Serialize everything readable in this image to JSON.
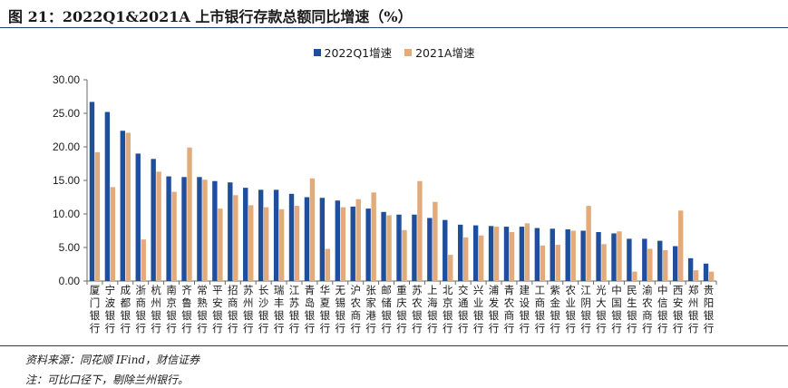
{
  "header": {
    "title": "图 21：2022Q1&2021A 上市银行存款总额同比增速（%）"
  },
  "footer": {
    "source": "资料来源：同花顺 IFind，财信证券",
    "note": "注：可比口径下，剔除兰州银行。"
  },
  "colors": {
    "series_2022Q1": "#1f4e9c",
    "series_2021A": "#e2ab7c",
    "axis": "#6a6a6a",
    "rule": "#1f3f7a"
  },
  "chart_data": {
    "type": "bar",
    "title": "",
    "xlabel": "",
    "ylabel": "",
    "ylim": [
      0,
      30
    ],
    "yticks": [
      "0.00",
      "5.00",
      "10.00",
      "15.00",
      "20.00",
      "25.00",
      "30.00"
    ],
    "grid": false,
    "legend_position": "top-center",
    "categories": [
      "厦门银行",
      "宁波银行",
      "成都银行",
      "浙商银行",
      "杭州银行",
      "南京银行",
      "齐鲁银行",
      "常熟银行",
      "平安银行",
      "招商银行",
      "苏州银行",
      "长沙银行",
      "瑞丰银行",
      "江苏银行",
      "青岛银行",
      "华夏银行",
      "无锡银行",
      "沪农商行",
      "张家港行",
      "邮储银行",
      "重庆银行",
      "苏农银行",
      "上海银行",
      "北京银行",
      "交通银行",
      "兴业银行",
      "浦发银行",
      "青农商行",
      "建设银行",
      "工商银行",
      "紫金银行",
      "农业银行",
      "江阴银行",
      "光大银行",
      "中国银行",
      "民生银行",
      "渝农商行",
      "中信银行",
      "西安银行",
      "郑州银行",
      "贵阳银行"
    ],
    "series": [
      {
        "name": "2022Q1增速",
        "values": [
          26.7,
          25.2,
          22.4,
          19.0,
          18.2,
          15.6,
          15.5,
          15.5,
          14.9,
          14.7,
          13.9,
          13.6,
          13.6,
          13.0,
          12.5,
          12.4,
          12.0,
          11.1,
          10.8,
          10.3,
          9.9,
          9.9,
          9.4,
          9.1,
          8.4,
          8.3,
          8.2,
          8.1,
          8.1,
          7.9,
          7.8,
          7.7,
          7.5,
          7.3,
          7.1,
          6.3,
          6.3,
          6.0,
          5.2,
          3.4,
          2.6
        ]
      },
      {
        "name": "2021A增速",
        "values": [
          19.2,
          14.0,
          22.1,
          6.2,
          16.3,
          13.3,
          19.9,
          15.1,
          10.8,
          12.8,
          11.3,
          11.0,
          10.7,
          11.2,
          15.3,
          4.8,
          11.0,
          12.2,
          13.2,
          9.8,
          7.6,
          14.9,
          11.8,
          3.9,
          6.5,
          6.8,
          8.1,
          7.3,
          8.6,
          5.3,
          5.4,
          7.5,
          11.2,
          5.5,
          7.4,
          1.4,
          4.8,
          4.6,
          10.5,
          1.6,
          1.4
        ]
      }
    ]
  }
}
